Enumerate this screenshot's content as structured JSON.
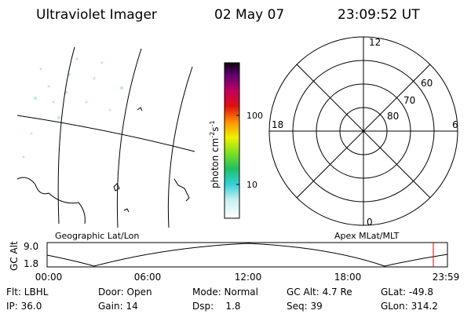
{
  "header": {
    "title": "Ultraviolet Imager",
    "date": "02 May 07",
    "time": "23:09:52 UT"
  },
  "colorbar": {
    "label": [
      "photon cm",
      "-2",
      "s",
      "-1"
    ],
    "ticks": [
      "100",
      "10"
    ]
  },
  "polar": {
    "mlt_labels": [
      "12",
      "18",
      "6",
      "0"
    ],
    "lat_labels": [
      "60",
      "70",
      "80"
    ]
  },
  "map_caption": "Geographic Lat/Lon",
  "polar_caption": "Apex MLat/MLT",
  "altitude": {
    "axis_label": "GC Alt",
    "y_labels": [
      "9.0",
      "1.8"
    ],
    "x_labels": [
      "00:00",
      "06:00",
      "12:00",
      "18:00",
      "23:59"
    ]
  },
  "info": [
    [
      "Flt: LBHL",
      "Door: Open",
      "Mode: Normal",
      "GC Alt: 4.7 Re",
      "GLat: -49.8"
    ],
    [
      "IP: 36.0",
      "Gain: 14",
      "Dsp:    1.8",
      "Seq: 39",
      "GLon: 314.2"
    ]
  ]
}
